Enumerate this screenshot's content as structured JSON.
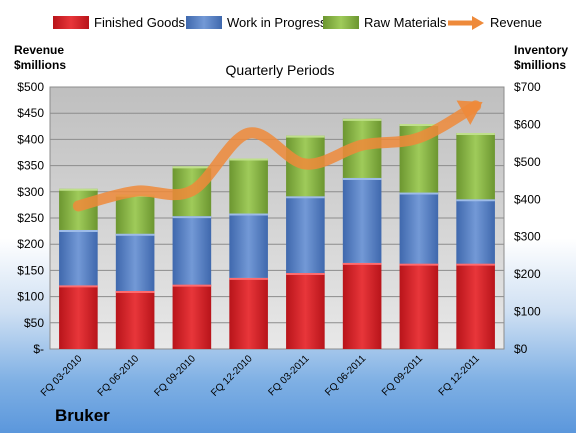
{
  "chart_data": {
    "type": "bar",
    "stacked": true,
    "title": "Quarterly Periods",
    "company": "Bruker",
    "left_axis_title": [
      "Revenue",
      "$millions"
    ],
    "right_axis_title": [
      "Inventory",
      "$millions"
    ],
    "categories": [
      "FQ 03-2010",
      "FQ 06-2010",
      "FQ 09-2010",
      "FQ 12-2010",
      "FQ 03-2011",
      "FQ 06-2011",
      "FQ 09-2011",
      "FQ 12-2011"
    ],
    "series": [
      {
        "name": "Finished Goods",
        "axis": "right",
        "color": "#e0262b",
        "values": [
          170,
          155,
          172,
          190,
          203,
          230,
          228,
          228
        ]
      },
      {
        "name": "Work in Progress",
        "axis": "right",
        "color": "#5b83c6",
        "values": [
          148,
          153,
          183,
          172,
          205,
          227,
          190,
          172
        ]
      },
      {
        "name": "Raw Materials",
        "axis": "right",
        "color": "#8cb84a",
        "values": [
          110,
          104,
          133,
          147,
          162,
          158,
          183,
          177
        ]
      },
      {
        "name": "Revenue",
        "axis": "left",
        "type": "line",
        "color": "#ee8a3a",
        "values": [
          273,
          301,
          302,
          412,
          353,
          389,
          403,
          464
        ]
      }
    ],
    "left_axis": {
      "min": 0,
      "max": 500,
      "step": 50,
      "ticks": [
        "$-",
        "$50",
        "$100",
        "$150",
        "$200",
        "$250",
        "$300",
        "$350",
        "$400",
        "$450",
        "$500"
      ]
    },
    "right_axis": {
      "min": 0,
      "max": 700,
      "step": 100,
      "ticks": [
        "$0",
        "$100",
        "$200",
        "$300",
        "$400",
        "$500",
        "$600",
        "$700"
      ]
    },
    "grid": true,
    "legend_position": "top"
  }
}
